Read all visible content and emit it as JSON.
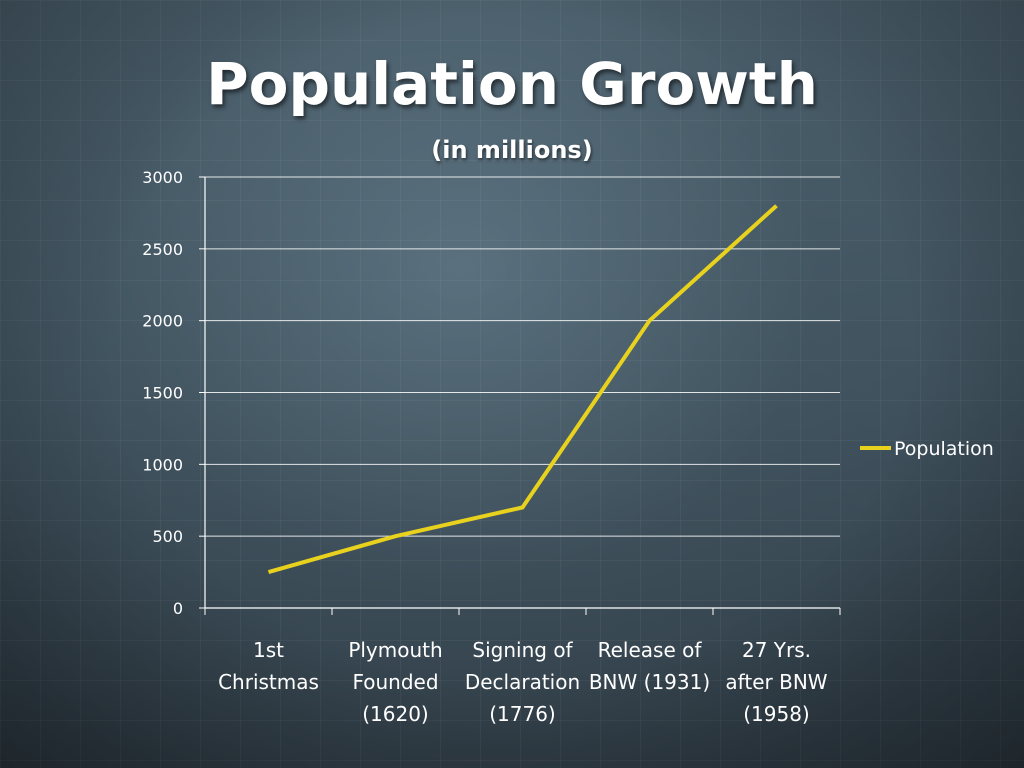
{
  "slide": {
    "title": "Population Growth",
    "subtitle": "(in millions)"
  },
  "chart_data": {
    "type": "line",
    "title": "Population Growth",
    "subtitle": "(in millions)",
    "categories": [
      [
        "1st",
        "Christmas"
      ],
      [
        "Plymouth",
        "Founded",
        "(1620)"
      ],
      [
        "Signing of",
        "Declaration",
        "(1776)"
      ],
      [
        "Release of",
        "BNW (1931)"
      ],
      [
        "27 Yrs.",
        "after BNW",
        "(1958)"
      ]
    ],
    "series": [
      {
        "name": "Population",
        "values": [
          250,
          500,
          700,
          2000,
          2800
        ],
        "color": "#e8d21e"
      }
    ],
    "ylim": [
      0,
      3000
    ],
    "yticks": [
      0,
      500,
      1000,
      1500,
      2000,
      2500,
      3000
    ],
    "grid": true,
    "legend": "right",
    "line_color": "#e8d21e",
    "grid_color": "#ffffff"
  }
}
